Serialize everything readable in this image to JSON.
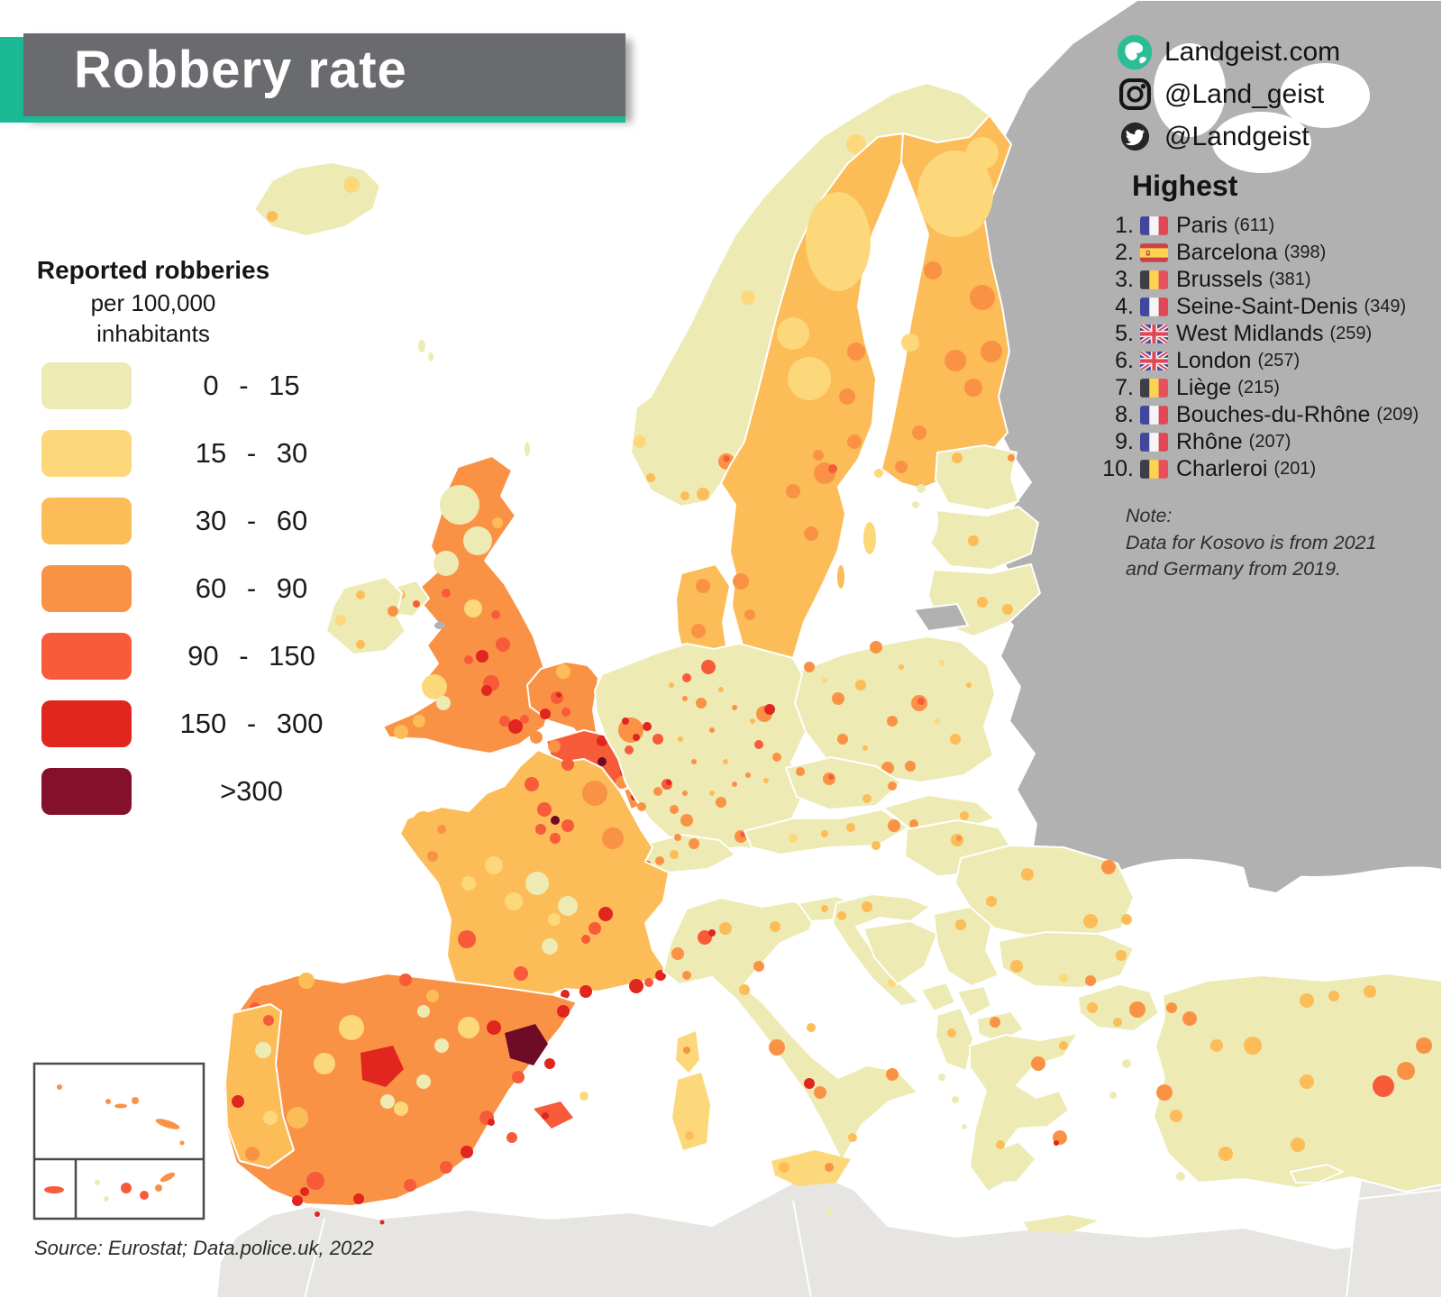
{
  "title": {
    "banner": "Robbery rate"
  },
  "branding": {
    "website": "Landgeist.com",
    "instagram": "@Land_geist",
    "twitter": "@Landgeist"
  },
  "legend": {
    "heading_bold": "Reported robberies",
    "heading_line2": "per 100,000",
    "heading_line3": "inhabitants",
    "bins": [
      {
        "label": "0 - 15",
        "color": "#EDEAB3"
      },
      {
        "label": "15 - 30",
        "color": "#FDD87B"
      },
      {
        "label": "30 - 60",
        "color": "#FCBC57"
      },
      {
        "label": "60 - 90",
        "color": "#FA9245"
      },
      {
        "label": "90 - 150",
        "color": "#F75B39"
      },
      {
        "label": "150 - 300",
        "color": "#E1251F"
      },
      {
        "label": ">300",
        "color": "#84102E"
      }
    ]
  },
  "highest": {
    "heading": "Highest",
    "items": [
      {
        "rank": "1.",
        "flag": "fr",
        "name": "Paris",
        "value": "(611)"
      },
      {
        "rank": "2.",
        "flag": "es",
        "name": "Barcelona",
        "value": "(398)"
      },
      {
        "rank": "3.",
        "flag": "be",
        "name": "Brussels",
        "value": "(381)"
      },
      {
        "rank": "4.",
        "flag": "fr",
        "name": "Seine-Saint-Denis",
        "value": "(349)"
      },
      {
        "rank": "5.",
        "flag": "gb",
        "name": "West Midlands",
        "value": "(259)"
      },
      {
        "rank": "6.",
        "flag": "gb",
        "name": "London",
        "value": "(257)"
      },
      {
        "rank": "7.",
        "flag": "be",
        "name": "Liège",
        "value": "(215)"
      },
      {
        "rank": "8.",
        "flag": "fr",
        "name": "Bouches-du-Rhône",
        "value": "(209)"
      },
      {
        "rank": "9.",
        "flag": "fr",
        "name": "Rhône",
        "value": "(207)"
      },
      {
        "rank": "10.",
        "flag": "be",
        "name": "Charleroi",
        "value": "(201)"
      }
    ]
  },
  "note": {
    "lines": [
      "Note:",
      "Data for Kosovo is from 2021",
      "and Germany from 2019."
    ]
  },
  "source": "Source: Eurostat; Data.police.uk, 2022",
  "map": {
    "no_data_color": "#B1B1B1",
    "non_europe_color": "#E6E5E2",
    "sea_color": "#FFFFFF",
    "accent_color": "#1BB994",
    "banner_color": "#6A6B6E"
  }
}
